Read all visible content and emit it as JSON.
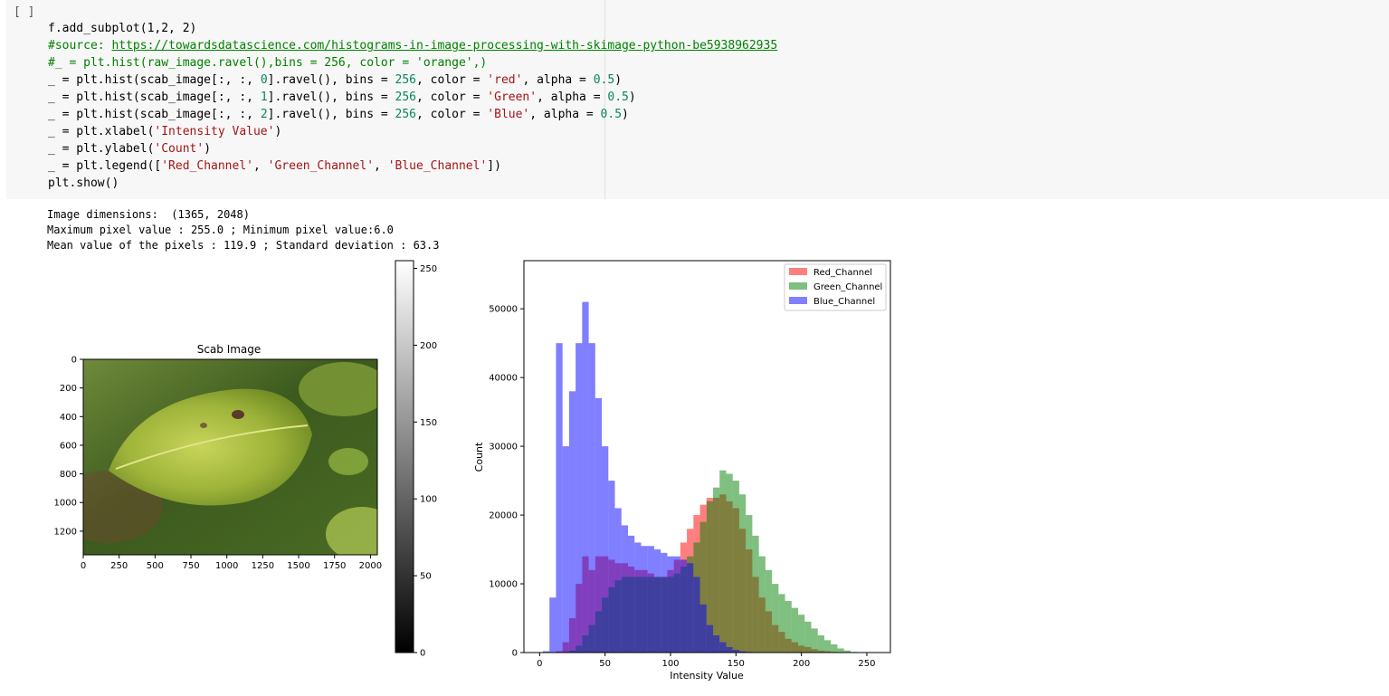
{
  "cell": {
    "run_indicator": "[ ]",
    "code": {
      "l1": "f.add_subplot(1,2, 2)",
      "l2_comment": "#source: ",
      "l2_link": "https://towardsdatascience.com/histograms-in-image-processing-with-skimage-python-be5938962935",
      "l3_comment": "#_ = plt.hist(raw_image.ravel(),bins = 256, color = 'orange',)",
      "hist_red": {
        "a": "_ = plt.hist(scab_image[:, :, ",
        "idx": "0",
        "b": "].ravel(), bins = ",
        "bins": "256",
        "c": ", color = ",
        "color": "'red'",
        "d": ", alpha = ",
        "alpha": "0.5",
        "e": ")"
      },
      "hist_green": {
        "a": "_ = plt.hist(scab_image[:, :, ",
        "idx": "1",
        "b": "].ravel(), bins = ",
        "bins": "256",
        "c": ", color = ",
        "color": "'Green'",
        "d": ", alpha = ",
        "alpha": "0.5",
        "e": ")"
      },
      "hist_blue": {
        "a": "_ = plt.hist(scab_image[:, :, ",
        "idx": "2",
        "b": "].ravel(), bins = ",
        "bins": "256",
        "c": ", color = ",
        "color": "'Blue'",
        "d": ", alpha = ",
        "alpha": "0.5",
        "e": ")"
      },
      "xlabel": {
        "a": "_ = plt.xlabel(",
        "s": "'Intensity Value'",
        "b": ")"
      },
      "ylabel": {
        "a": "_ = plt.ylabel(",
        "s": "'Count'",
        "b": ")"
      },
      "legend": {
        "a": "_ = plt.legend([",
        "s1": "'Red_Channel'",
        "sep1": ", ",
        "s2": "'Green_Channel'",
        "sep2": ", ",
        "s3": "'Blue_Channel'",
        "b": "])"
      },
      "show": "plt.show()"
    }
  },
  "output": {
    "line1": "Image dimensions:  (1365, 2048)",
    "line2": "Maximum pixel value : 255.0 ; Minimum pixel value:6.0",
    "line3": "Mean value of the pixels : 119.9 ; Standard deviation : 63.3"
  },
  "image_plot": {
    "title": "Scab Image",
    "x_ticks": [
      "0",
      "250",
      "500",
      "750",
      "1000",
      "1250",
      "1500",
      "1750",
      "2000"
    ],
    "y_ticks": [
      "0",
      "200",
      "400",
      "600",
      "800",
      "1000",
      "1200"
    ]
  },
  "colorbar": {
    "ticks": [
      "0",
      "50",
      "100",
      "150",
      "200",
      "250"
    ]
  },
  "chart_data": {
    "type": "bar",
    "xlabel": "Intensity Value",
    "ylabel": "Count",
    "xlim": [
      -12,
      268
    ],
    "ylim": [
      0,
      57000
    ],
    "x_ticks": [
      0,
      50,
      100,
      150,
      200,
      250
    ],
    "y_ticks": [
      0,
      10000,
      20000,
      30000,
      40000,
      50000
    ],
    "legend_position": "top-right",
    "series": [
      {
        "name": "Red_Channel",
        "color": "#ff0000",
        "alpha": 0.5,
        "x": [
          15,
          20,
          25,
          30,
          35,
          40,
          45,
          50,
          55,
          60,
          65,
          70,
          75,
          80,
          85,
          90,
          95,
          100,
          105,
          110,
          115,
          120,
          125,
          130,
          135,
          140,
          145,
          150,
          155,
          160,
          165,
          170,
          175,
          180,
          185,
          190,
          195,
          200,
          205,
          210,
          215,
          220,
          225,
          230,
          235
        ],
        "values": [
          200,
          1500,
          5000,
          10000,
          14000,
          12000,
          14000,
          14000,
          13500,
          13000,
          13000,
          12500,
          12000,
          12000,
          11500,
          11000,
          11000,
          12000,
          13500,
          16000,
          18000,
          20000,
          21500,
          22500,
          22500,
          23000,
          22000,
          21000,
          18000,
          15000,
          11000,
          8000,
          6000,
          4000,
          3000,
          2000,
          1500,
          1000,
          800,
          500,
          300,
          200,
          100,
          50,
          0
        ]
      },
      {
        "name": "Green_Channel",
        "color": "#008000",
        "alpha": 0.5,
        "x": [
          20,
          25,
          30,
          35,
          40,
          45,
          50,
          55,
          60,
          65,
          70,
          75,
          80,
          85,
          90,
          95,
          100,
          105,
          110,
          115,
          120,
          125,
          130,
          135,
          140,
          145,
          150,
          155,
          160,
          165,
          170,
          175,
          180,
          185,
          190,
          195,
          200,
          205,
          210,
          215,
          220,
          225,
          230,
          235,
          240,
          245
        ],
        "values": [
          100,
          300,
          1000,
          2500,
          4000,
          6000,
          8000,
          9500,
          10500,
          11000,
          11000,
          11000,
          11000,
          11000,
          11000,
          11000,
          11000,
          11500,
          12500,
          14000,
          16000,
          19000,
          22000,
          24000,
          26500,
          26000,
          25000,
          23000,
          20000,
          17000,
          14000,
          12000,
          10000,
          8500,
          7500,
          6500,
          5500,
          4500,
          3500,
          2500,
          1800,
          1200,
          600,
          300,
          100,
          0
        ]
      },
      {
        "name": "Blue_Channel",
        "color": "#0000ff",
        "alpha": 0.5,
        "x": [
          5,
          10,
          15,
          20,
          25,
          30,
          35,
          40,
          45,
          50,
          55,
          60,
          65,
          70,
          75,
          80,
          85,
          90,
          95,
          100,
          105,
          110,
          115,
          120,
          125,
          130,
          135,
          140,
          145,
          150,
          155,
          160,
          165,
          170,
          175
        ],
        "values": [
          200,
          8000,
          45000,
          30000,
          38000,
          45000,
          51000,
          45000,
          37000,
          30000,
          25000,
          21000,
          18500,
          17000,
          16000,
          15500,
          15500,
          15000,
          14500,
          14000,
          14000,
          13500,
          13000,
          11000,
          7000,
          4000,
          2500,
          1500,
          800,
          400,
          200,
          100,
          50,
          20,
          0
        ]
      }
    ]
  }
}
